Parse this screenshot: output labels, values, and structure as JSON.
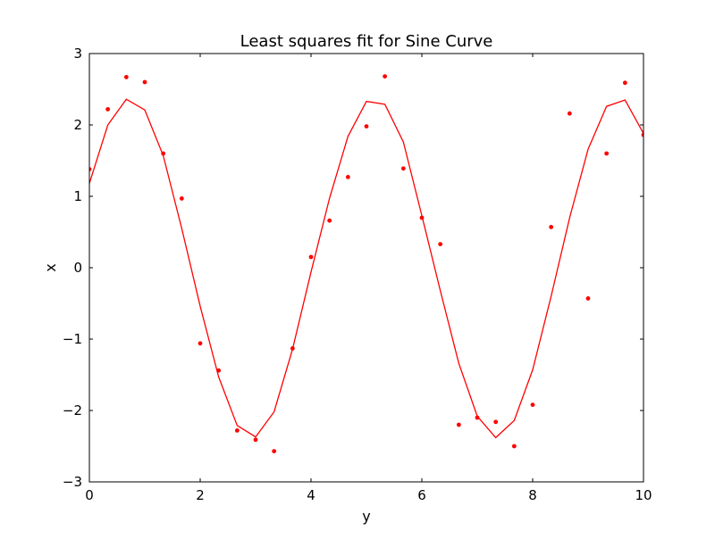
{
  "chart_data": {
    "type": "scatter",
    "title": "Least squares fit for Sine Curve",
    "xlabel": "y",
    "ylabel": "x",
    "xlim": [
      0,
      10
    ],
    "ylim": [
      -3,
      3
    ],
    "xticks": [
      0,
      2,
      4,
      6,
      8,
      10
    ],
    "yticks": [
      -3,
      -2,
      -1,
      0,
      1,
      2,
      3
    ],
    "xtick_labels": [
      "0",
      "2",
      "4",
      "6",
      "8",
      "10"
    ],
    "ytick_labels": [
      "−3",
      "−2",
      "−1",
      "0",
      "1",
      "2",
      "3"
    ],
    "grid": false,
    "series": [
      {
        "kind": "points",
        "color": "#ff0000",
        "x": [
          0.0,
          0.333,
          0.667,
          1.0,
          1.333,
          1.667,
          2.0,
          2.333,
          2.667,
          3.0,
          3.333,
          3.667,
          4.0,
          4.333,
          4.667,
          5.0,
          5.333,
          5.667,
          6.0,
          6.333,
          6.667,
          7.0,
          7.333,
          7.667,
          8.0,
          8.333,
          8.667,
          9.0,
          9.333,
          9.667,
          10.0
        ],
        "y": [
          1.38,
          2.22,
          2.67,
          2.6,
          1.6,
          0.97,
          -1.06,
          -1.44,
          -2.28,
          -2.41,
          -2.57,
          -1.13,
          0.15,
          0.66,
          1.27,
          1.98,
          2.68,
          1.39,
          0.7,
          0.33,
          -2.2,
          -2.1,
          -2.16,
          -2.5,
          -1.92,
          0.57,
          2.16,
          -0.43,
          1.6,
          2.59,
          1.86
        ]
      },
      {
        "kind": "line",
        "color": "#ff0000",
        "x": [
          0.0,
          0.333,
          0.667,
          1.0,
          1.333,
          1.667,
          2.0,
          2.333,
          2.667,
          3.0,
          3.333,
          3.667,
          4.0,
          4.333,
          4.667,
          5.0,
          5.333,
          5.667,
          6.0,
          6.333,
          6.667,
          7.0,
          7.333,
          7.667,
          8.0,
          8.333,
          8.667,
          9.0,
          9.333,
          9.667,
          10.0
        ],
        "y": [
          1.18,
          2.0,
          2.36,
          2.21,
          1.57,
          0.55,
          -0.54,
          -1.53,
          -2.21,
          -2.37,
          -2.02,
          -1.14,
          -0.06,
          0.97,
          1.84,
          2.33,
          2.29,
          1.76,
          0.73,
          -0.32,
          -1.34,
          -2.08,
          -2.38,
          -2.14,
          -1.43,
          -0.4,
          0.7,
          1.66,
          2.26,
          2.35,
          1.88
        ]
      }
    ]
  }
}
